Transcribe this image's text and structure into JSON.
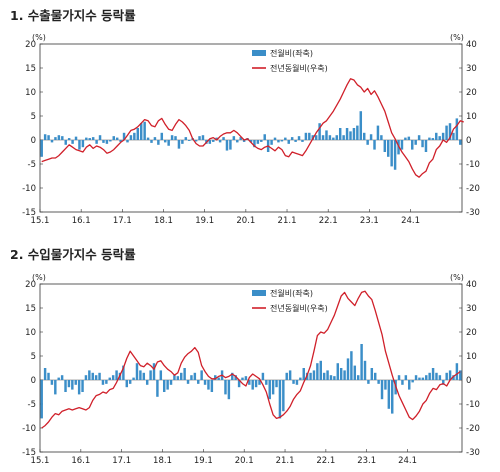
{
  "colors": {
    "bar": "#3b8ec8",
    "line": "#d0202a",
    "frame": "#333333"
  },
  "chart_data": [
    {
      "type": "bar",
      "title": "1. 수출물가지수 등락률",
      "left_unit": "(%)",
      "right_unit": "(%)",
      "ylim_left": [
        -15,
        20
      ],
      "ylim_right": [
        -30,
        40
      ],
      "yticks_left": [
        -15,
        -10,
        -5,
        0,
        5,
        10,
        15,
        20
      ],
      "yticks_right": [
        -30,
        -20,
        -10,
        0,
        10,
        20,
        30,
        40
      ],
      "xticks": [
        "15.1",
        "16.1",
        "17.1",
        "18.1",
        "19.1",
        "20.1",
        "21.1",
        "22.1",
        "23.1",
        "24.1"
      ],
      "legend_position": "top-right",
      "series": [
        {
          "name": "전월비(좌축)",
          "kind": "bar",
          "axis": "left",
          "values": [
            -3.5,
            1.2,
            1.0,
            -0.5,
            0.6,
            1.0,
            0.8,
            -1.0,
            0.4,
            -0.8,
            0.7,
            -2.0,
            -1.5,
            0.5,
            0.4,
            0.6,
            -0.8,
            1.0,
            -0.6,
            -0.8,
            -0.3,
            0.8,
            0.5,
            -0.4,
            1.5,
            -0.5,
            1.0,
            1.5,
            2.5,
            3.5,
            3.8,
            0.5,
            -0.6,
            0.6,
            -1.0,
            1.5,
            -0.5,
            -1.2,
            1.0,
            0.8,
            -1.8,
            -0.8,
            0.6,
            -0.2,
            0.4,
            -0.3,
            0.8,
            1.0,
            -0.8,
            -0.8,
            -0.4,
            0.5,
            -0.5,
            0.6,
            -2.2,
            -2.0,
            0.8,
            -0.5,
            0.6,
            -0.4,
            0.4,
            -0.5,
            -1.5,
            -0.8,
            -0.4,
            1.2,
            -2.5,
            -1.0,
            0.5,
            -0.5,
            -0.3,
            0.5,
            -0.8,
            0.6,
            -0.4,
            0.8,
            -0.4,
            1.5,
            1.5,
            1.0,
            1.0,
            3.5,
            1.0,
            2.0,
            1.0,
            0.5,
            1.0,
            2.5,
            1.0,
            2.5,
            1.8,
            2.5,
            3.0,
            6.0,
            1.5,
            -1.0,
            1.2,
            -2.0,
            3.0,
            1.0,
            -2.5,
            -3.5,
            -5.5,
            -6.2,
            -3.0,
            -2.0,
            0.5,
            0.7,
            -2.0,
            -1.0,
            1.0,
            -1.5,
            -2.5,
            0.5,
            0.4,
            1.5,
            0.8,
            1.5,
            3.0,
            3.5,
            1.5,
            4.5,
            -1.0
          ]
        },
        {
          "name": "전년동월비(우축)",
          "kind": "line",
          "axis": "right",
          "values": [
            -9.0,
            -8.5,
            -8.0,
            -7.5,
            -7.5,
            -6.5,
            -5.0,
            -3.5,
            -2.0,
            -3.0,
            -4.0,
            -4.5,
            -5.0,
            -3.0,
            -2.0,
            -3.5,
            -2.5,
            -3.0,
            -4.0,
            -5.5,
            -5.0,
            -4.0,
            -2.5,
            -1.0,
            0.0,
            2.0,
            4.0,
            4.5,
            5.5,
            7.0,
            8.5,
            8.0,
            6.0,
            5.5,
            8.0,
            9.0,
            6.5,
            4.5,
            4.0,
            6.5,
            8.5,
            7.5,
            6.0,
            4.0,
            0.5,
            -1.5,
            -2.5,
            -2.5,
            -1.0,
            0.5,
            1.0,
            0.0,
            1.5,
            2.5,
            3.0,
            3.0,
            4.0,
            3.0,
            1.5,
            0.0,
            0.5,
            -1.0,
            -2.5,
            -3.5,
            -4.0,
            -3.0,
            -2.5,
            -3.5,
            -4.5,
            -3.0,
            -4.0,
            -6.5,
            -7.0,
            -5.0,
            -5.5,
            -6.0,
            -6.5,
            -4.5,
            -2.0,
            0.5,
            3.0,
            5.0,
            7.0,
            8.0,
            10.0,
            12.0,
            14.5,
            17.0,
            20.0,
            23.0,
            25.5,
            25.0,
            23.0,
            22.0,
            20.0,
            21.5,
            19.0,
            20.5,
            18.0,
            15.0,
            12.0,
            7.5,
            3.0,
            0.5,
            -2.5,
            -5.0,
            -7.0,
            -9.0,
            -12.0,
            -14.5,
            -15.5,
            -14.0,
            -13.0,
            -9.5,
            -8.0,
            -4.0,
            -2.5,
            0.0,
            -1.0,
            1.0,
            4.5,
            6.0,
            8.0,
            7.5
          ]
        }
      ]
    },
    {
      "type": "bar",
      "title": "2. 수입물가지수 등락률",
      "left_unit": "(%)",
      "right_unit": "(%)",
      "ylim_left": [
        -15,
        20
      ],
      "ylim_right": [
        -30,
        40
      ],
      "yticks_left": [
        -15,
        -10,
        -5,
        0,
        5,
        10,
        15,
        20
      ],
      "yticks_right": [
        -30,
        -20,
        -10,
        0,
        10,
        20,
        30,
        40
      ],
      "xticks": [
        "15.1",
        "16.1",
        "17.1",
        "18.1",
        "19.1",
        "20.1",
        "21.1",
        "22.1",
        "23.1",
        "24.1"
      ],
      "legend_position": "top-right",
      "series": [
        {
          "name": "전월비(좌축)",
          "kind": "bar",
          "axis": "left",
          "values": [
            -8.0,
            2.5,
            1.5,
            -1.0,
            -3.0,
            0.5,
            1.0,
            -2.5,
            -1.5,
            -2.0,
            -1.0,
            -3.0,
            -2.5,
            1.0,
            2.0,
            1.5,
            1.0,
            1.5,
            -1.0,
            -0.8,
            0.5,
            1.0,
            2.0,
            1.5,
            3.0,
            -1.5,
            -0.8,
            0.5,
            3.5,
            2.0,
            1.5,
            -1.0,
            2.0,
            3.5,
            -3.5,
            2.0,
            -2.5,
            -2.0,
            -1.0,
            1.0,
            0.8,
            1.5,
            2.5,
            -0.8,
            1.0,
            1.5,
            -0.8,
            2.0,
            -1.0,
            -2.0,
            -2.5,
            1.0,
            0.5,
            2.0,
            -3.0,
            -4.0,
            1.5,
            1.0,
            -1.5,
            0.5,
            0.8,
            -1.0,
            -2.0,
            -1.5,
            -1.0,
            1.5,
            -1.0,
            -4.0,
            -3.0,
            -1.5,
            -8.0,
            -6.5,
            1.5,
            2.0,
            -0.8,
            -1.0,
            0.5,
            2.5,
            1.5,
            1.5,
            2.0,
            3.5,
            4.0,
            1.5,
            2.0,
            1.0,
            0.8,
            3.5,
            2.5,
            2.0,
            4.5,
            6.0,
            3.0,
            1.0,
            7.5,
            4.0,
            -0.8,
            2.5,
            1.5,
            -0.8,
            -4.0,
            -2.0,
            -6.0,
            -7.0,
            -3.0,
            1.0,
            -1.0,
            1.0,
            -2.0,
            -0.5,
            1.0,
            0.5,
            0.5,
            1.0,
            1.5,
            2.5,
            1.5,
            1.0,
            -1.0,
            1.5,
            2.0,
            1.0,
            3.5,
            2.0
          ]
        },
        {
          "name": "전년동월비(우축)",
          "kind": "line",
          "axis": "right",
          "values": [
            -20.0,
            -19.0,
            -17.5,
            -15.5,
            -14.0,
            -14.5,
            -13.0,
            -12.5,
            -12.0,
            -12.5,
            -12.0,
            -11.5,
            -12.0,
            -12.5,
            -11.5,
            -8.5,
            -6.5,
            -6.0,
            -5.0,
            -5.5,
            -4.0,
            -3.5,
            -1.0,
            2.0,
            5.0,
            9.0,
            12.0,
            10.0,
            8.0,
            6.0,
            5.5,
            7.0,
            6.0,
            4.5,
            7.5,
            8.0,
            6.0,
            4.5,
            3.5,
            2.0,
            3.0,
            7.0,
            9.5,
            11.0,
            12.0,
            13.5,
            11.5,
            6.0,
            3.5,
            1.5,
            0.5,
            0.5,
            1.5,
            2.0,
            1.0,
            1.5,
            2.5,
            1.5,
            0.0,
            -1.5,
            -2.5,
            1.0,
            2.5,
            1.5,
            0.5,
            -2.0,
            -5.0,
            -10.0,
            -14.5,
            -16.0,
            -15.5,
            -14.5,
            -13.0,
            -11.0,
            -8.0,
            -6.0,
            -4.5,
            -1.0,
            2.0,
            6.0,
            12.0,
            18.5,
            20.0,
            19.5,
            21.0,
            24.0,
            27.0,
            31.0,
            35.0,
            36.5,
            34.0,
            32.5,
            31.0,
            34.0,
            36.5,
            37.0,
            35.0,
            33.5,
            29.0,
            24.0,
            19.0,
            12.0,
            7.0,
            2.0,
            -2.5,
            -6.5,
            -9.5,
            -12.5,
            -15.5,
            -16.5,
            -15.0,
            -13.0,
            -10.0,
            -8.5,
            -5.5,
            -3.5,
            -4.0,
            -2.0,
            -1.5,
            -2.5,
            0.0,
            1.5,
            2.5,
            3.5
          ]
        }
      ]
    }
  ]
}
